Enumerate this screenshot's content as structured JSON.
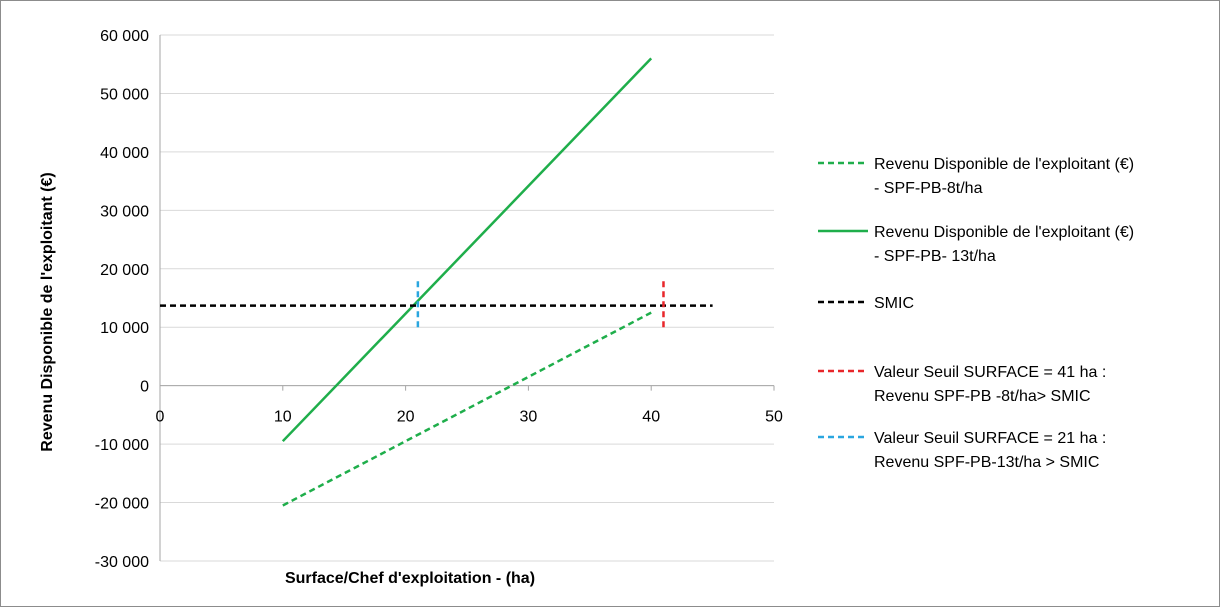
{
  "chart_data": {
    "type": "line",
    "title": "",
    "xlabel": "Surface/Chef d'exploitation - (ha)",
    "ylabel": "Revenu Disponible de l'exploitant (€)",
    "xlim": [
      0,
      50
    ],
    "ylim": [
      -30000,
      60000
    ],
    "x_ticks": [
      0,
      10,
      20,
      30,
      40,
      50
    ],
    "x_tick_labels": [
      "0",
      "10",
      "20",
      "30",
      "40",
      "50"
    ],
    "y_ticks": [
      -30000,
      -20000,
      -10000,
      0,
      10000,
      20000,
      30000,
      40000,
      50000,
      60000
    ],
    "y_tick_labels": [
      "-30 000",
      "-20 000",
      "-10 000",
      "0",
      "10 000",
      "20 000",
      "30 000",
      "40 000",
      "50 000",
      "60 000"
    ],
    "grid": "horizontal major gridlines",
    "legend_position": "right",
    "series": [
      {
        "name": "Revenu Disponible de l'exploitant (€) - SPF-PB-8t/ha",
        "legend_lines": [
          "Revenu Disponible de l'exploitant (€)",
          "- SPF-PB-8t/ha"
        ],
        "color": "#1fae4b",
        "dash": "dashed",
        "x": [
          10,
          40
        ],
        "y": [
          -20500,
          12500
        ]
      },
      {
        "name": "Revenu Disponible de l'exploitant (€) - SPF-PB- 13t/ha",
        "legend_lines": [
          "Revenu Disponible de l'exploitant (€)",
          "- SPF-PB- 13t/ha"
        ],
        "color": "#1fae4b",
        "dash": "solid",
        "x": [
          10,
          40
        ],
        "y": [
          -9500,
          56000
        ]
      },
      {
        "name": "SMIC",
        "legend_lines": [
          "SMIC"
        ],
        "color": "#000000",
        "dash": "dashed",
        "x": [
          0,
          45
        ],
        "y": [
          13700,
          13700
        ]
      },
      {
        "name": "Valeur Seuil SURFACE = 41 ha : Revenu SPF-PB -8t/ha> SMIC",
        "legend_lines": [
          "Valeur Seuil SURFACE = 41 ha :",
          "Revenu SPF-PB -8t/ha> SMIC"
        ],
        "color": "#e8262a",
        "dash": "dashed",
        "x": [
          41,
          41
        ],
        "y": [
          10000,
          18000
        ]
      },
      {
        "name": "Valeur Seuil SURFACE = 21 ha : Revenu SPF-PB-13t/ha > SMIC",
        "legend_lines": [
          "Valeur Seuil SURFACE = 21 ha :",
          "Revenu SPF-PB-13t/ha > SMIC"
        ],
        "color": "#2aa6df",
        "dash": "dashed",
        "x": [
          21,
          21
        ],
        "y": [
          10000,
          18000
        ]
      }
    ]
  }
}
